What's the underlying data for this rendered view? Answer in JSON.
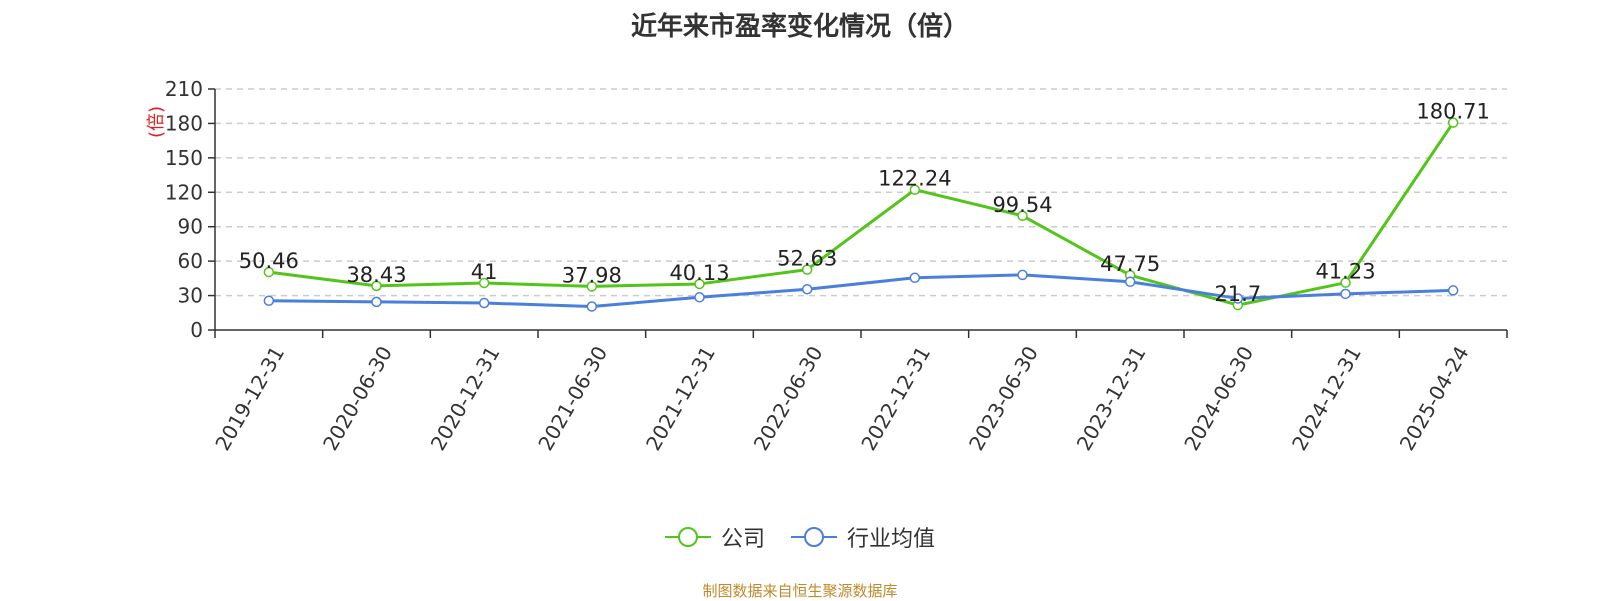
{
  "chart_data": {
    "type": "line",
    "title": "近年来市盈率变化情况（倍）",
    "ylabel": "(倍)",
    "ylim": [
      0,
      210
    ],
    "yticks": [
      0,
      30,
      60,
      90,
      120,
      150,
      180,
      210
    ],
    "grid": true,
    "legend_position": "bottom",
    "categories": [
      "2019-12-31",
      "2020-06-30",
      "2020-12-31",
      "2021-06-30",
      "2021-12-31",
      "2022-06-30",
      "2022-12-31",
      "2023-06-30",
      "2023-12-31",
      "2024-06-30",
      "2024-12-31",
      "2025-04-24"
    ],
    "series": [
      {
        "name": "公司",
        "color": "#52c41a",
        "values": [
          50.46,
          38.43,
          41,
          37.98,
          40.13,
          52.63,
          122.24,
          99.54,
          47.75,
          21.7,
          41.23,
          180.71
        ],
        "labels": [
          "50.46",
          "38.43",
          "41",
          "37.98",
          "40.13",
          "52.63",
          "122.24",
          "99.54",
          "47.75",
          "21.7",
          "41.23",
          "180.71"
        ]
      },
      {
        "name": "行业均值",
        "color": "#4a7fdc",
        "values": [
          25.5,
          24.5,
          23.5,
          20.5,
          28.5,
          35.5,
          45.5,
          48,
          42,
          27.5,
          31.5,
          34.5
        ]
      }
    ]
  },
  "footer": "制图数据来自恒生聚源数据库"
}
